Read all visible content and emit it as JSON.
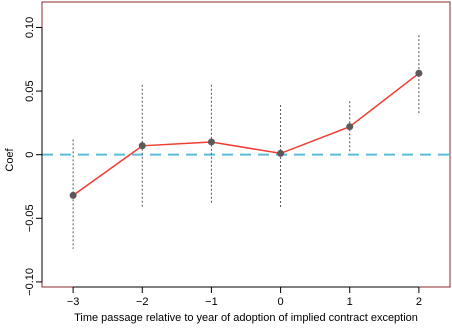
{
  "chart_data": {
    "type": "line",
    "title": "",
    "xlabel": "Time passage relative to year of adoption of implied contract exception",
    "ylabel": "Coef",
    "x": [
      -3,
      -2,
      -1,
      0,
      1,
      2
    ],
    "x_ticks": [
      "−3",
      "−2",
      "−1",
      "0",
      "1",
      "2"
    ],
    "xlim": [
      -3.45,
      2.45
    ],
    "ylim": [
      -0.104,
      0.12
    ],
    "y_ticks": [
      -0.1,
      -0.05,
      0,
      0.05,
      0.1
    ],
    "y_tick_labels": [
      "−0.10",
      "−0.05",
      "0",
      "0.05",
      "0.10"
    ],
    "series": [
      {
        "values": [
          -0.032,
          0.007,
          0.01,
          0.001,
          0.022,
          0.064
        ],
        "ci_low": [
          -0.074,
          -0.042,
          -0.038,
          -0.042,
          0.001,
          0.031
        ],
        "ci_high": [
          0.012,
          0.055,
          0.055,
          0.039,
          0.042,
          0.094
        ]
      }
    ],
    "reference_line": {
      "y": 0,
      "style": "dashed"
    },
    "grid": false,
    "colors": {
      "line": "#f03c32",
      "marker": "#5a5a5a",
      "ci": "#555555",
      "reference": "#5bbcd6",
      "frame": "#8b2b2b"
    }
  }
}
